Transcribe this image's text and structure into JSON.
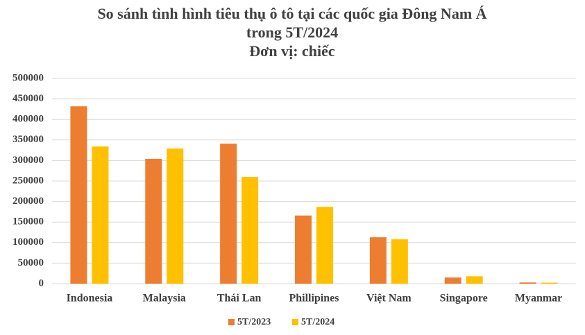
{
  "chart_data": {
    "type": "bar",
    "title": [
      "So sánh tình hình tiêu thụ ô tô tại các quốc gia Đông Nam Á",
      "trong 5T/2024",
      "Đơn vị: chiếc"
    ],
    "categories": [
      "Indonesia",
      "Malaysia",
      "Thái Lan",
      "Phillipines",
      "Việt Nam",
      "Singapore",
      "Myanmar"
    ],
    "series": [
      {
        "name": "5T/2023",
        "color": "#ed7d31",
        "values": [
          432000,
          304000,
          341000,
          166000,
          113000,
          15000,
          3000
        ]
      },
      {
        "name": "5T/2024",
        "color": "#ffc000",
        "values": [
          334000,
          329000,
          260000,
          187000,
          108000,
          18000,
          2500
        ]
      }
    ],
    "ylim": [
      0,
      500000
    ],
    "yticks": [
      0,
      50000,
      100000,
      150000,
      200000,
      250000,
      300000,
      350000,
      400000,
      450000,
      500000
    ],
    "grid": true,
    "legend": "bottom"
  }
}
